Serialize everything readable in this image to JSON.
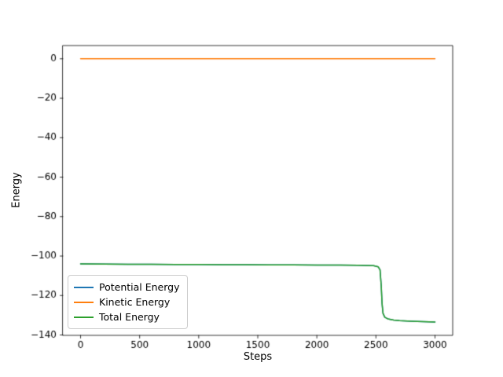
{
  "chart_data": {
    "type": "line",
    "title": "",
    "xlabel": "Steps",
    "ylabel": "Energy",
    "xlim": [
      -150,
      3150
    ],
    "ylim": [
      -140.2,
      6.7
    ],
    "grid": false,
    "legend_position": "lower left",
    "x_ticks": {
      "values": [
        0,
        500,
        1000,
        1500,
        2000,
        2500,
        3000
      ],
      "labels": [
        "0",
        "500",
        "1000",
        "1500",
        "2000",
        "2500",
        "3000"
      ]
    },
    "y_ticks": {
      "values": [
        0,
        -20,
        -40,
        -60,
        -80,
        -100,
        -120,
        -140
      ],
      "labels": [
        "0",
        "−20",
        "−40",
        "−60",
        "−80",
        "−100",
        "−120",
        "−140"
      ]
    },
    "series": [
      {
        "name": "Potential Energy",
        "color": "#1f77b4",
        "points": [
          [
            0,
            -104.0
          ],
          [
            200,
            -104.1
          ],
          [
            400,
            -104.15
          ],
          [
            600,
            -104.2
          ],
          [
            800,
            -104.25
          ],
          [
            1000,
            -104.3
          ],
          [
            1200,
            -104.35
          ],
          [
            1400,
            -104.4
          ],
          [
            1600,
            -104.45
          ],
          [
            1800,
            -104.5
          ],
          [
            2000,
            -104.55
          ],
          [
            2200,
            -104.6
          ],
          [
            2350,
            -104.7
          ],
          [
            2480,
            -104.9
          ],
          [
            2520,
            -105.5
          ],
          [
            2535,
            -107.0
          ],
          [
            2545,
            -115.0
          ],
          [
            2552,
            -124.0
          ],
          [
            2560,
            -129.0
          ],
          [
            2575,
            -131.0
          ],
          [
            2600,
            -131.8
          ],
          [
            2650,
            -132.4
          ],
          [
            2700,
            -132.7
          ],
          [
            2800,
            -133.0
          ],
          [
            2900,
            -133.2
          ],
          [
            3000,
            -133.4
          ]
        ]
      },
      {
        "name": "Kinetic Energy",
        "color": "#ff7f0e",
        "points": [
          [
            0,
            0.0
          ],
          [
            500,
            0.0
          ],
          [
            1000,
            0.0
          ],
          [
            1500,
            0.0
          ],
          [
            2000,
            0.0
          ],
          [
            2500,
            0.0
          ],
          [
            3000,
            0.0
          ]
        ]
      },
      {
        "name": "Total Energy",
        "color": "#2ca02c",
        "points": [
          [
            0,
            -104.0
          ],
          [
            200,
            -104.1
          ],
          [
            400,
            -104.15
          ],
          [
            600,
            -104.2
          ],
          [
            800,
            -104.25
          ],
          [
            1000,
            -104.3
          ],
          [
            1200,
            -104.35
          ],
          [
            1400,
            -104.4
          ],
          [
            1600,
            -104.45
          ],
          [
            1800,
            -104.5
          ],
          [
            2000,
            -104.55
          ],
          [
            2200,
            -104.6
          ],
          [
            2350,
            -104.7
          ],
          [
            2480,
            -104.9
          ],
          [
            2520,
            -105.5
          ],
          [
            2535,
            -107.0
          ],
          [
            2545,
            -115.0
          ],
          [
            2552,
            -124.0
          ],
          [
            2560,
            -129.0
          ],
          [
            2575,
            -131.0
          ],
          [
            2600,
            -131.8
          ],
          [
            2650,
            -132.4
          ],
          [
            2700,
            -132.7
          ],
          [
            2800,
            -133.0
          ],
          [
            2900,
            -133.2
          ],
          [
            3000,
            -133.4
          ]
        ]
      }
    ]
  }
}
